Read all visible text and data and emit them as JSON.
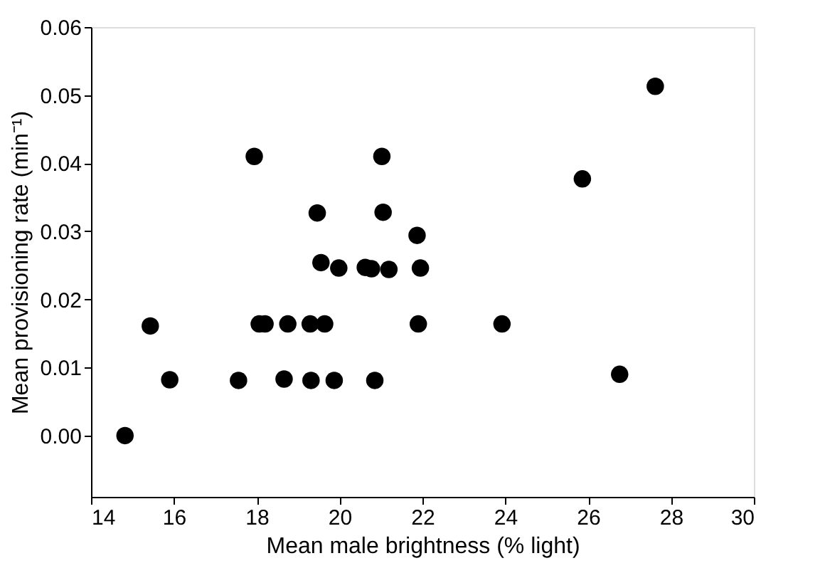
{
  "chart_data": {
    "type": "scatter",
    "xlabel": "Mean male brightness (% light)",
    "ylabel": "Mean provisioning rate (min⁻¹)",
    "x": [
      14.82,
      15.43,
      15.9,
      17.56,
      17.94,
      18.06,
      18.2,
      18.66,
      18.75,
      19.31,
      19.29,
      19.46,
      19.55,
      19.64,
      19.87,
      19.98,
      20.62,
      20.77,
      20.85,
      21.02,
      21.05,
      21.19,
      21.87,
      21.9,
      21.95,
      23.92,
      25.86,
      26.76,
      27.62
    ],
    "series": [
      {
        "color": "#000000",
        "values": [
          0.0,
          0.0161,
          0.0082,
          0.0081,
          0.041,
          0.0164,
          0.0164,
          0.0083,
          0.0164,
          0.0081,
          0.0164,
          0.0327,
          0.0254,
          0.0164,
          0.0081,
          0.0246,
          0.0247,
          0.0245,
          0.0081,
          0.041,
          0.0328,
          0.0244,
          0.0294,
          0.0164,
          0.0246,
          0.0164,
          0.0377,
          0.009,
          0.0513
        ]
      }
    ],
    "xlim": [
      14,
      30
    ],
    "xticks": [
      14,
      16,
      18,
      20,
      22,
      24,
      26,
      28,
      30
    ],
    "ylim": [
      -0.009,
      0.06
    ],
    "yticks": [
      {
        "value": 0,
        "label": "0.00"
      },
      {
        "value": 0.01,
        "label": "0.01"
      },
      {
        "value": 0.02,
        "label": "0.02"
      },
      {
        "value": 0.03,
        "label": "0.03"
      },
      {
        "value": 0.04,
        "label": "0.04"
      },
      {
        "value": 0.05,
        "label": "0.05"
      },
      {
        "value": 0.06,
        "label": "0.06"
      }
    ],
    "marker": "circle",
    "grid": false
  }
}
